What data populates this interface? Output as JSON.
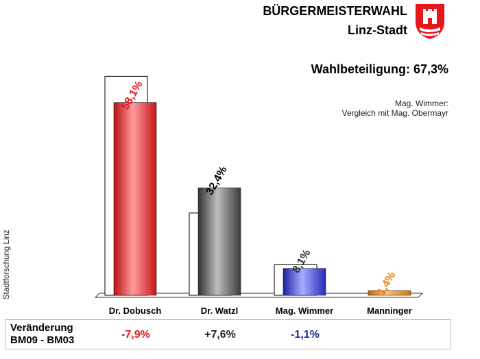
{
  "header": {
    "title": "BÜRGERMEISTERWAHL",
    "subtitle": "Linz-Stadt",
    "turnout": "Wahlbeteiligung: 67,3%",
    "note_line1": "Mag. Wimmer:",
    "note_line2": "Vergleich mit Mag. Obermayr"
  },
  "side_label": "Stadtforschung Linz",
  "colors": {
    "dobusch": "#e8151b",
    "watzl": "#555555",
    "wimmer": "#2b33cc",
    "manninger": "#e8820a",
    "change_negative": "#e8151b",
    "change_positive": "#222222",
    "change_blue": "#1a2a8c"
  },
  "chart_data": {
    "type": "bar",
    "categories": [
      "Dr. Dobusch",
      "Dr. Watzl",
      "Mag. Wimmer",
      "Manninger"
    ],
    "values": [
      58.1,
      32.4,
      8.1,
      1.4
    ],
    "value_labels": [
      "58,1%",
      "32,4%",
      "8,1%",
      "1,4%"
    ],
    "previous_values": [
      66.0,
      24.8,
      9.2,
      null
    ],
    "label_colors": [
      "#e8151b",
      "#000000",
      "#333333",
      "#e8820a"
    ],
    "ylim": [
      0,
      70
    ],
    "grid": false
  },
  "change_row": {
    "label_line1": "Veränderung",
    "label_line2": "BM09 - BM03",
    "values": [
      "-7,9%",
      "+7,6%",
      "-1,1%"
    ]
  }
}
